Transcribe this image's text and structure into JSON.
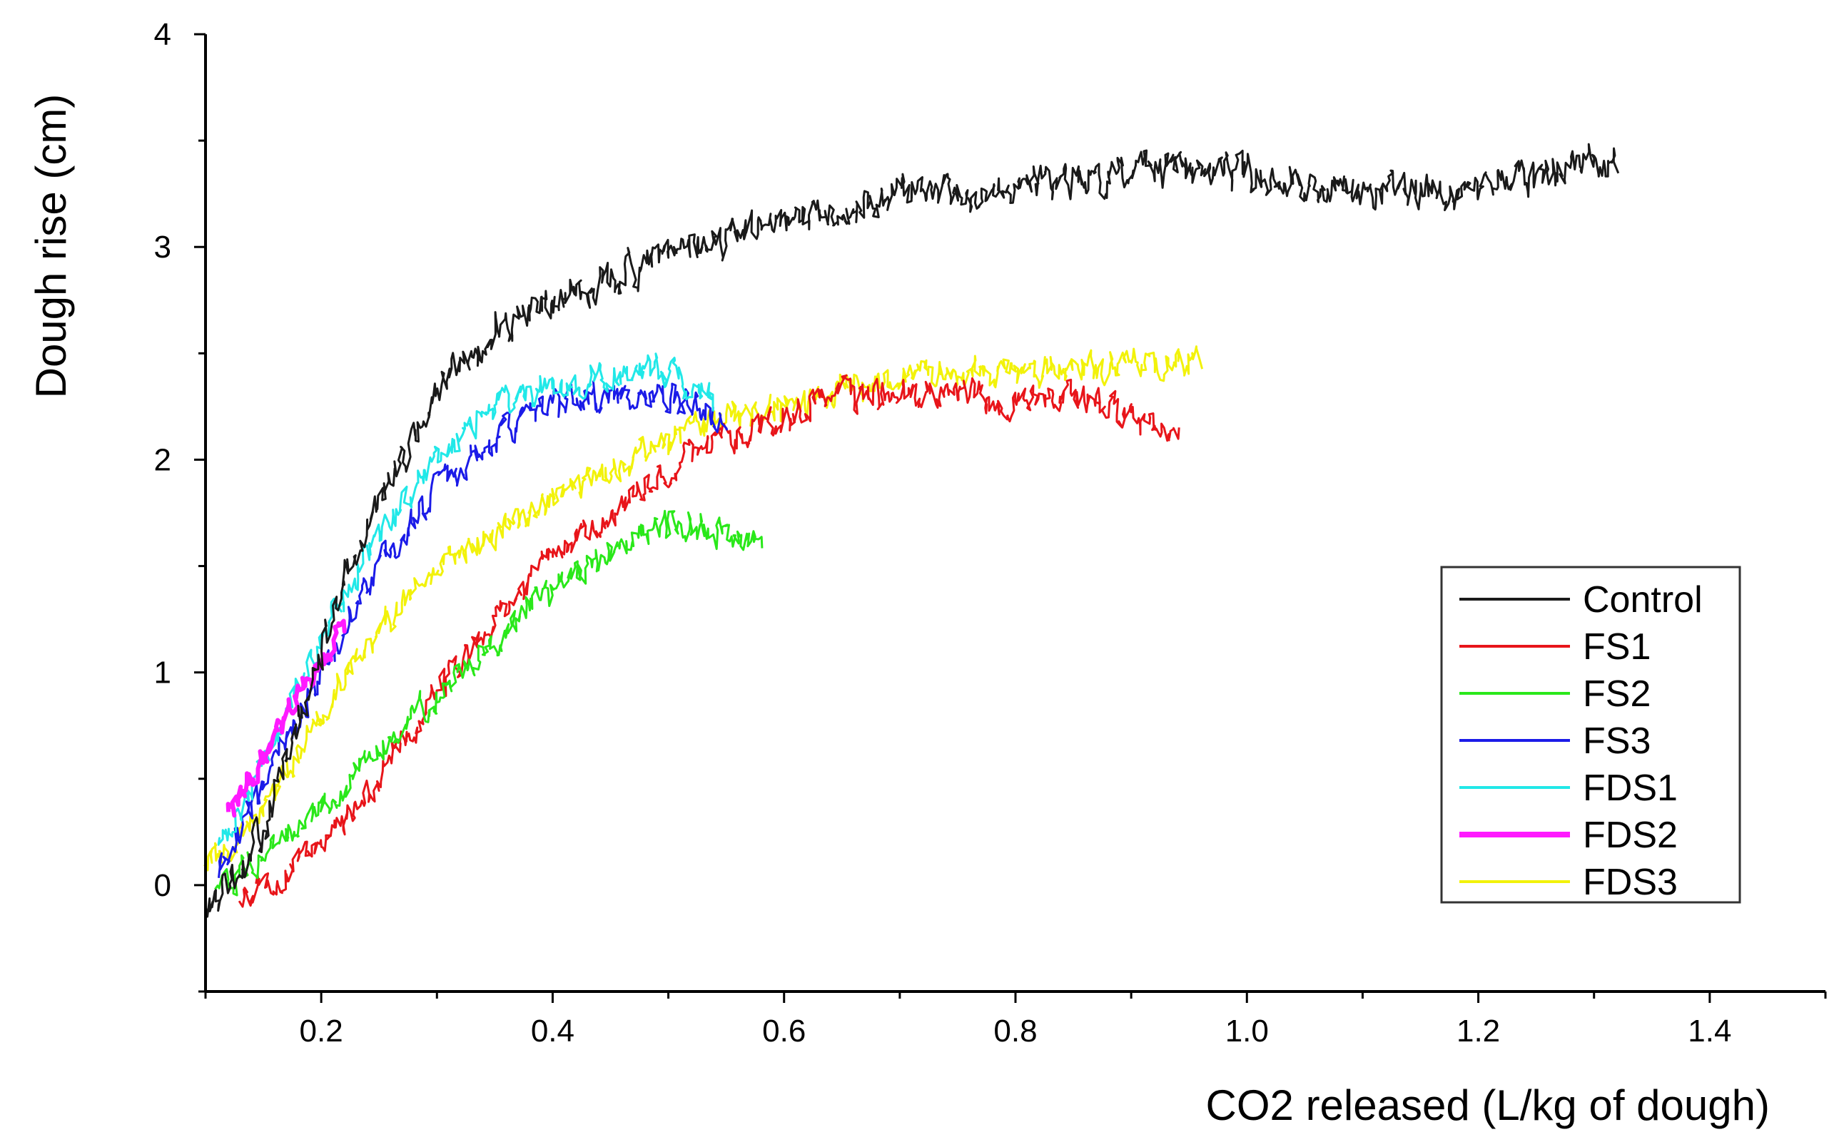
{
  "chart_data": {
    "type": "line",
    "title": "",
    "xlabel": "CO2 released (L/kg of dough)",
    "ylabel": "Dough rise (cm)",
    "xlim": [
      0.1,
      1.5
    ],
    "ylim": [
      -0.5,
      4
    ],
    "x_ticks": [
      0.2,
      0.4,
      0.6,
      0.8,
      1.0,
      1.2,
      1.4
    ],
    "x_tick_labels": [
      "0.2",
      "0.4",
      "0.6",
      "0.8",
      "1.0",
      "1.2",
      "1.4"
    ],
    "y_ticks": [
      0,
      1,
      2,
      3,
      4
    ],
    "y_tick_labels": [
      "0",
      "1",
      "2",
      "3",
      "4"
    ],
    "grid": false,
    "legend_position": "center-right",
    "series": [
      {
        "name": "Control",
        "color": "#1a1a1a",
        "noise": 0.06,
        "x": [
          0.1,
          0.12,
          0.14,
          0.16,
          0.18,
          0.2,
          0.22,
          0.25,
          0.3,
          0.35,
          0.4,
          0.45,
          0.5,
          0.55,
          0.6,
          0.7,
          0.8,
          0.9,
          1.0,
          1.1,
          1.2,
          1.25,
          1.32
        ],
        "y": [
          -0.1,
          -0.05,
          0.15,
          0.4,
          0.75,
          1.1,
          1.4,
          1.8,
          2.3,
          2.6,
          2.75,
          2.85,
          2.95,
          3.05,
          3.1,
          3.25,
          3.3,
          3.35,
          3.35,
          3.25,
          3.25,
          3.35,
          3.4
        ]
      },
      {
        "name": "FS1",
        "color": "#e8151a",
        "noise": 0.05,
        "x": [
          0.13,
          0.16,
          0.2,
          0.25,
          0.3,
          0.35,
          0.4,
          0.45,
          0.5,
          0.55,
          0.6,
          0.65,
          0.7,
          0.75,
          0.8,
          0.85,
          0.9,
          0.94
        ],
        "y": [
          -0.05,
          0.0,
          0.2,
          0.5,
          0.9,
          1.25,
          1.55,
          1.75,
          1.95,
          2.1,
          2.2,
          2.3,
          2.3,
          2.3,
          2.25,
          2.3,
          2.2,
          2.1
        ]
      },
      {
        "name": "FS2",
        "color": "#2ae81a",
        "noise": 0.05,
        "x": [
          0.11,
          0.13,
          0.16,
          0.2,
          0.25,
          0.3,
          0.35,
          0.4,
          0.45,
          0.5,
          0.55,
          0.58
        ],
        "y": [
          0.0,
          0.05,
          0.2,
          0.35,
          0.65,
          0.9,
          1.15,
          1.4,
          1.55,
          1.7,
          1.65,
          1.62
        ]
      },
      {
        "name": "FS3",
        "color": "#1b1be8",
        "noise": 0.05,
        "x": [
          0.11,
          0.13,
          0.16,
          0.2,
          0.25,
          0.3,
          0.35,
          0.4,
          0.45,
          0.5,
          0.55
        ],
        "y": [
          0.05,
          0.25,
          0.6,
          1.0,
          1.5,
          1.85,
          2.1,
          2.25,
          2.3,
          2.3,
          2.2
        ]
      },
      {
        "name": "FDS1",
        "color": "#21e8e8",
        "noise": 0.05,
        "x": [
          0.11,
          0.13,
          0.16,
          0.2,
          0.25,
          0.3,
          0.35,
          0.4,
          0.45,
          0.5,
          0.54
        ],
        "y": [
          0.2,
          0.35,
          0.7,
          1.15,
          1.65,
          2.0,
          2.25,
          2.35,
          2.4,
          2.4,
          2.3
        ]
      },
      {
        "name": "FDS2",
        "color": "#ff1aff",
        "noise": 0.04,
        "x": [
          0.12,
          0.14,
          0.16,
          0.18,
          0.2,
          0.22
        ],
        "y": [
          0.35,
          0.5,
          0.7,
          0.9,
          1.05,
          1.2
        ]
      },
      {
        "name": "FDS3",
        "color": "#f2f20a",
        "noise": 0.05,
        "x": [
          0.1,
          0.12,
          0.15,
          0.2,
          0.25,
          0.3,
          0.35,
          0.4,
          0.45,
          0.5,
          0.55,
          0.6,
          0.7,
          0.8,
          0.9,
          0.96
        ],
        "y": [
          0.1,
          0.15,
          0.35,
          0.8,
          1.2,
          1.5,
          1.65,
          1.8,
          1.95,
          2.1,
          2.2,
          2.25,
          2.4,
          2.4,
          2.45,
          2.45
        ]
      }
    ]
  }
}
